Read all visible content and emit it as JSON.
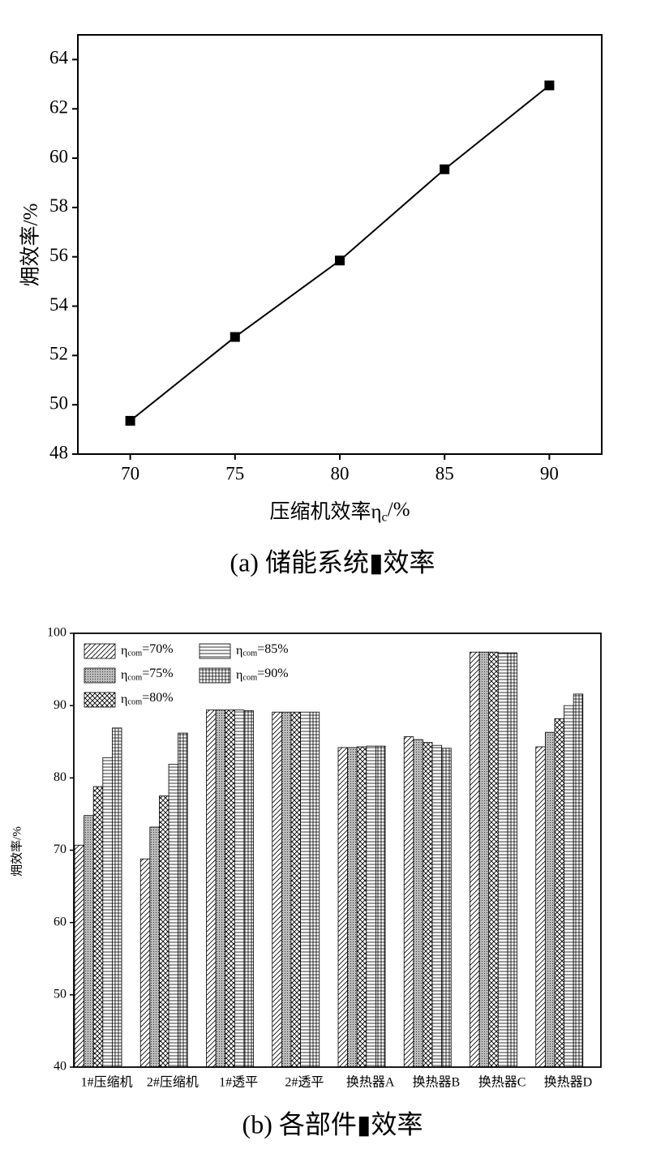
{
  "chart_data": [
    {
      "type": "line",
      "x": [
        70,
        75,
        80,
        85,
        90
      ],
      "values": [
        49.35,
        52.75,
        55.85,
        59.55,
        62.95
      ],
      "xlim": [
        67.5,
        92.5
      ],
      "xticks": [
        70,
        75,
        80,
        85,
        90
      ],
      "ylim": [
        48,
        65
      ],
      "yticks": [
        48,
        50,
        52,
        54,
        56,
        58,
        60,
        62,
        64
      ],
      "xlabel": "压缩机效率ηc/%",
      "ylabel": "㶲效率/%",
      "color": "#000000",
      "marker": "square",
      "caption": "(a) 储能系统▮效率"
    },
    {
      "type": "bar",
      "categories": [
        "1#压缩机",
        "2#压缩机",
        "1#透平",
        "2#透平",
        "换热器A",
        "换热器B",
        "换热器C",
        "换热器D"
      ],
      "series": [
        {
          "name": "ηcom=70%",
          "color": "#000000",
          "hatch": "diagonal",
          "values": [
            70.7,
            68.8,
            89.4,
            89.1,
            84.2,
            85.7,
            97.4,
            84.3
          ]
        },
        {
          "name": "ηcom=75%",
          "color": "#000000",
          "hatch": "dots",
          "values": [
            74.8,
            73.2,
            89.4,
            89.1,
            84.2,
            85.3,
            97.4,
            86.3
          ]
        },
        {
          "name": "ηcom=80%",
          "color": "#000000",
          "hatch": "cross",
          "values": [
            78.8,
            77.5,
            89.4,
            89.1,
            84.3,
            84.9,
            97.4,
            88.2
          ]
        },
        {
          "name": "ηcom=85%",
          "color": "#000000",
          "hatch": "horizontal",
          "values": [
            82.8,
            81.9,
            89.4,
            89.1,
            84.4,
            84.5,
            97.3,
            90.0
          ]
        },
        {
          "name": "ηcom=90%",
          "color": "#000000",
          "hatch": "grid",
          "values": [
            86.9,
            86.2,
            89.3,
            89.1,
            84.4,
            84.1,
            97.3,
            91.6
          ]
        }
      ],
      "ylim": [
        40,
        100
      ],
      "yticks": [
        40,
        50,
        60,
        70,
        80,
        90,
        100
      ],
      "ylabel": "㶲效率/%",
      "legend": "upper left",
      "caption": "(b) 各部件▮效率"
    }
  ]
}
